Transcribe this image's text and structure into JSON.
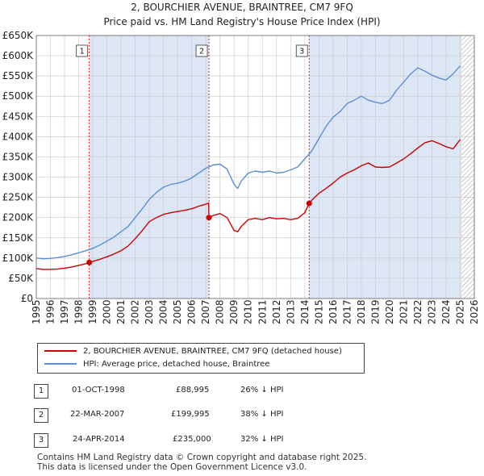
{
  "header": {
    "line1": "2, BOURCHIER AVENUE, BRAINTREE, CM7 9FQ",
    "line2": "Price paid vs. HM Land Registry's House Price Index (HPI)"
  },
  "colors": {
    "price_paid": "#cc0000",
    "hpi": "#5b8fd6",
    "shade": "#dde6f5",
    "grid": "#cccccc"
  },
  "chart_data": {
    "type": "line",
    "title": "Price paid vs. HM Land Registry's House Price Index (HPI)",
    "xlabel": "",
    "ylabel": "",
    "xlim": [
      1995,
      2026
    ],
    "ylim": [
      0,
      650000
    ],
    "x_ticks": [
      1995,
      1996,
      1997,
      1998,
      1999,
      2000,
      2001,
      2002,
      2003,
      2004,
      2005,
      2006,
      2007,
      2008,
      2009,
      2010,
      2011,
      2012,
      2013,
      2014,
      2015,
      2016,
      2017,
      2018,
      2019,
      2020,
      2021,
      2022,
      2023,
      2024,
      2025,
      2026
    ],
    "y_ticks": [
      {
        "value": 0,
        "label": "£0"
      },
      {
        "value": 50000,
        "label": "£50K"
      },
      {
        "value": 100000,
        "label": "£100K"
      },
      {
        "value": 150000,
        "label": "£150K"
      },
      {
        "value": 200000,
        "label": "£200K"
      },
      {
        "value": 250000,
        "label": "£250K"
      },
      {
        "value": 300000,
        "label": "£300K"
      },
      {
        "value": 350000,
        "label": "£350K"
      },
      {
        "value": 400000,
        "label": "£400K"
      },
      {
        "value": 450000,
        "label": "£450K"
      },
      {
        "value": 500000,
        "label": "£500K"
      },
      {
        "value": 550000,
        "label": "£550K"
      },
      {
        "value": 600000,
        "label": "£600K"
      },
      {
        "value": 650000,
        "label": "£650K"
      }
    ],
    "grid": true,
    "shaded_periods": [
      [
        1998.75,
        2007.22
      ],
      [
        2014.31,
        2025.1
      ]
    ],
    "hatched_after": 2025.1,
    "series": [
      {
        "name": "2, BOURCHIER AVENUE, BRAINTREE, CM7 9FQ (detached house)",
        "x": [
          1995,
          1995.5,
          1996,
          1996.5,
          1997,
          1997.5,
          1998,
          1998.5,
          1998.75,
          1999,
          1999.5,
          2000,
          2000.5,
          2001,
          2001.5,
          2002,
          2002.5,
          2003,
          2003.5,
          2004,
          2004.5,
          2005,
          2005.5,
          2006,
          2006.5,
          2007,
          2007.2,
          2007.22,
          2007.5,
          2008,
          2008.5,
          2009,
          2009.25,
          2009.5,
          2010,
          2010.5,
          2011,
          2011.5,
          2012,
          2012.5,
          2013,
          2013.5,
          2014,
          2014.31,
          2014.5,
          2015,
          2015.5,
          2016,
          2016.5,
          2017,
          2017.5,
          2018,
          2018.5,
          2019,
          2019.5,
          2020,
          2020.5,
          2021,
          2021.5,
          2022,
          2022.5,
          2023,
          2023.5,
          2024,
          2024.5,
          2025
        ],
        "y": [
          74000,
          72000,
          72000,
          73000,
          75000,
          78000,
          82000,
          86000,
          88995,
          92000,
          97000,
          103000,
          110000,
          118000,
          130000,
          148000,
          168000,
          190000,
          200000,
          208000,
          212000,
          215000,
          218000,
          222000,
          228000,
          233000,
          236000,
          199995,
          205000,
          210000,
          200000,
          168000,
          165000,
          178000,
          195000,
          198000,
          195000,
          200000,
          197000,
          198000,
          195000,
          198000,
          212000,
          235000,
          243000,
          260000,
          272000,
          285000,
          300000,
          310000,
          318000,
          328000,
          335000,
          325000,
          324000,
          325000,
          335000,
          345000,
          358000,
          372000,
          385000,
          390000,
          383000,
          375000,
          370000,
          393000
        ]
      },
      {
        "name": "HPI: Average price, detached house, Braintree",
        "x": [
          1995,
          1995.5,
          1996,
          1996.5,
          1997,
          1997.5,
          1998,
          1998.5,
          1999,
          1999.5,
          2000,
          2000.5,
          2001,
          2001.5,
          2002,
          2002.5,
          2003,
          2003.5,
          2004,
          2004.5,
          2005,
          2005.5,
          2006,
          2006.5,
          2007,
          2007.5,
          2008,
          2008.5,
          2009,
          2009.25,
          2009.5,
          2010,
          2010.5,
          2011,
          2011.5,
          2012,
          2012.5,
          2013,
          2013.5,
          2014,
          2014.5,
          2015,
          2015.5,
          2016,
          2016.5,
          2017,
          2017.5,
          2018,
          2018.5,
          2019,
          2019.5,
          2020,
          2020.5,
          2021,
          2021.5,
          2022,
          2022.5,
          2023,
          2023.5,
          2024,
          2024.5,
          2025
        ],
        "y": [
          100000,
          98000,
          99000,
          101000,
          104000,
          108000,
          113000,
          118000,
          124000,
          132000,
          142000,
          152000,
          165000,
          178000,
          200000,
          222000,
          245000,
          262000,
          275000,
          282000,
          285000,
          290000,
          298000,
          310000,
          322000,
          330000,
          332000,
          320000,
          282000,
          272000,
          290000,
          310000,
          315000,
          312000,
          315000,
          310000,
          312000,
          318000,
          325000,
          345000,
          365000,
          395000,
          425000,
          448000,
          462000,
          482000,
          490000,
          500000,
          490000,
          485000,
          482000,
          490000,
          515000,
          535000,
          555000,
          570000,
          562000,
          552000,
          545000,
          540000,
          555000,
          575000
        ]
      }
    ],
    "sales": [
      {
        "id": "1",
        "x": 1998.75,
        "price": 88995,
        "date": "01-OCT-1998",
        "price_label": "£88,995",
        "hpi_diff": "26% ↓ HPI"
      },
      {
        "id": "2",
        "x": 2007.22,
        "price": 199995,
        "date": "22-MAR-2007",
        "price_label": "£199,995",
        "hpi_diff": "38% ↓ HPI"
      },
      {
        "id": "3",
        "x": 2014.31,
        "price": 235000,
        "date": "24-APR-2014",
        "price_label": "£235,000",
        "hpi_diff": "32% ↓ HPI"
      }
    ]
  },
  "legend": {
    "price_label": "2, BOURCHIER AVENUE, BRAINTREE, CM7 9FQ (detached house)",
    "hpi_label": "HPI: Average price, detached house, Braintree"
  },
  "footer": {
    "line1": "Contains HM Land Registry data © Crown copyright and database right 2025.",
    "line2": "This data is licensed under the Open Government Licence v3.0."
  }
}
